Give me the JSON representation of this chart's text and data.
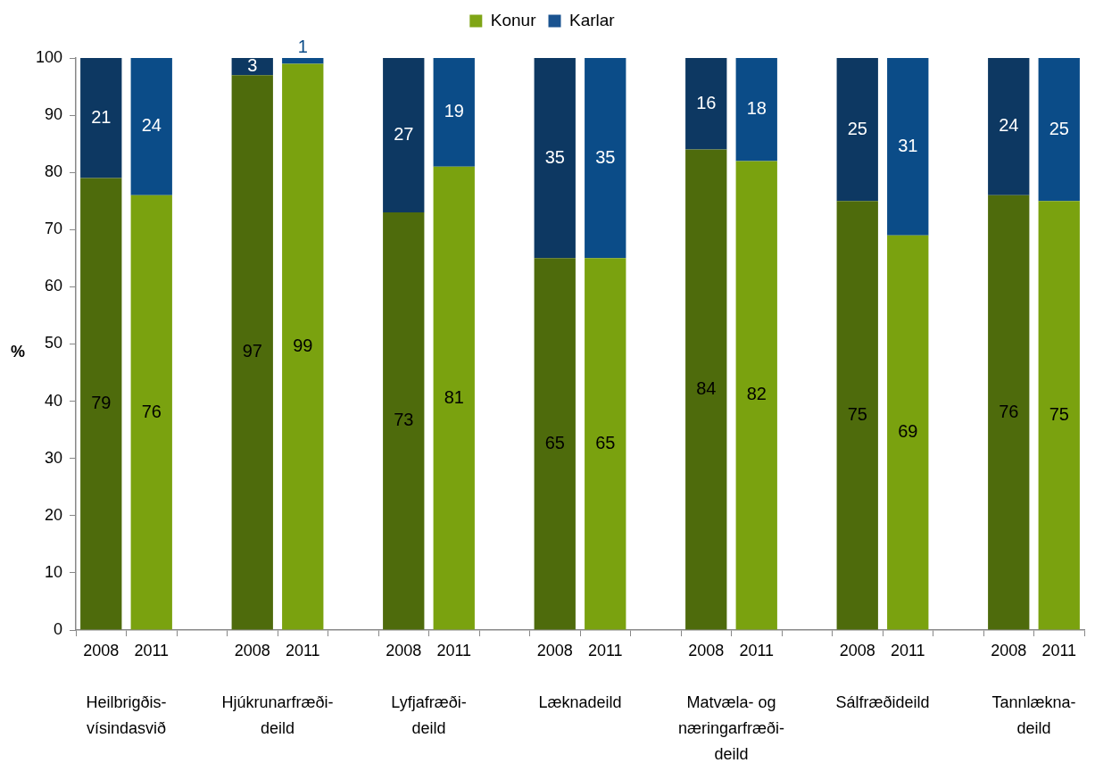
{
  "chart_data": {
    "type": "bar",
    "stacked": true,
    "categories": [
      "2008",
      "2011",
      null,
      "2008",
      "2011",
      null,
      "2008",
      "2011",
      null,
      "2008",
      "2011",
      null,
      "2008",
      "2011",
      null,
      "2008",
      "2011",
      null,
      "2008",
      "2011"
    ],
    "series": [
      {
        "name": "Konur",
        "color": "#7fa516",
        "colors": [
          "#4e6b0c",
          "#7aa20f",
          null,
          "#4e6b0c",
          "#7aa20f",
          null,
          "#4e6b0c",
          "#7aa20f",
          null,
          "#4e6b0c",
          "#7aa20f",
          null,
          "#4e6b0c",
          "#7aa20f",
          null,
          "#4e6b0c",
          "#7aa20f",
          null,
          "#4e6b0c",
          "#7aa20f"
        ],
        "values": [
          79,
          76,
          null,
          97,
          99,
          null,
          73,
          81,
          null,
          65,
          65,
          null,
          84,
          82,
          null,
          75,
          69,
          null,
          76,
          75
        ]
      },
      {
        "name": "Karlar",
        "color": "#1a5390",
        "colors": [
          "#0d3862",
          "#0b4c88",
          null,
          "#0d3862",
          "#0b4c88",
          null,
          "#0d3862",
          "#0b4c88",
          null,
          "#0d3862",
          "#0b4c88",
          null,
          "#0d3862",
          "#0b4c88",
          null,
          "#0d3862",
          "#0b4c88",
          null,
          "#0d3862",
          "#0b4c88"
        ],
        "values": [
          21,
          24,
          null,
          3,
          1,
          null,
          27,
          19,
          null,
          35,
          35,
          null,
          16,
          18,
          null,
          25,
          31,
          null,
          24,
          25
        ]
      }
    ],
    "ylabel": "%",
    "ylim": [
      0,
      100
    ],
    "yticks": [
      0,
      10,
      20,
      30,
      40,
      50,
      60,
      70,
      80,
      90,
      100
    ],
    "grid": false,
    "legend": "top",
    "data_labels": true,
    "annotations": [
      "Heilbrigðis-\nvísindasvið",
      "Hjúkrunarfræði-\ndeild",
      "Lyfjafræði-\ndeild",
      "Læknadeild",
      "Matvæla- og\nnæringarfræði-\ndeild",
      "Sálfræðideild",
      "Tannlækna-\ndeild"
    ]
  }
}
